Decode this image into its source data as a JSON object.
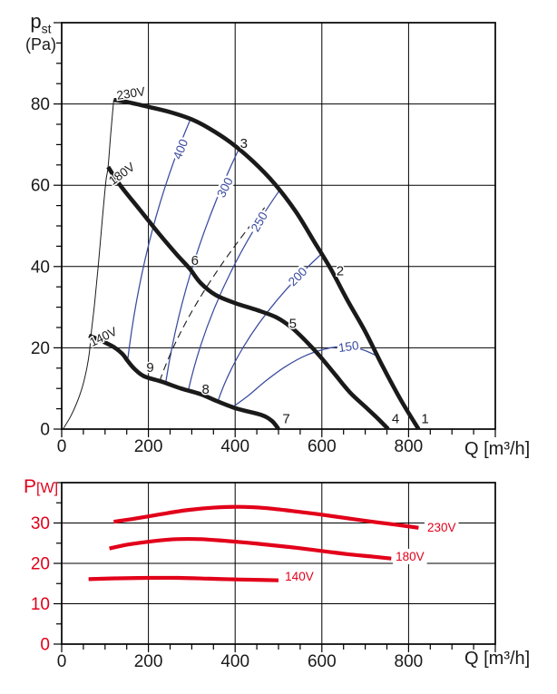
{
  "colors": {
    "black": "#1a1a1a",
    "blue": "#3a4b9f",
    "red": "#e2001a",
    "grid": "#000000"
  },
  "axis_titles": {
    "pressure_main": "p",
    "pressure_sub": "st",
    "pressure_unit": "(Pa)",
    "flow": "Q [m³/h]",
    "power_main": "P",
    "power_unit": "[W]"
  },
  "chart_data": [
    {
      "name": "static-pressure-vs-flow",
      "type": "line",
      "xlabel": "Q [m³/h]",
      "ylabel": "pst (Pa)",
      "xlim": [
        0,
        1000
      ],
      "ylim": [
        0,
        100
      ],
      "x_major": 200,
      "x_minor": 50,
      "y_major": 20,
      "y_minor": 5,
      "x_ticks_labeled": [
        0,
        200,
        400,
        600,
        800
      ],
      "y_ticks_labeled": [
        0,
        20,
        40,
        60,
        80
      ],
      "grid": true,
      "tick_label_color_y": "black",
      "series": [
        {
          "name": "230V",
          "color": "black",
          "width": 4.6,
          "points": [
            [
              120,
              81
            ],
            [
              150,
              80.5
            ],
            [
              200,
              79.3
            ],
            [
              250,
              78
            ],
            [
              300,
              76.2
            ],
            [
              340,
              74
            ],
            [
              390,
              70.5
            ],
            [
              440,
              66
            ],
            [
              490,
              60.5
            ],
            [
              540,
              53.5
            ],
            [
              583,
              46
            ],
            [
              620,
              39.5
            ],
            [
              660,
              31.5
            ],
            [
              700,
              24
            ],
            [
              740,
              15.5
            ],
            [
              783,
              7
            ],
            [
              823,
              0
            ]
          ]
        },
        {
          "name": "180V",
          "color": "black",
          "width": 4.6,
          "points": [
            [
              107,
              64.5
            ],
            [
              135,
              60
            ],
            [
              180,
              54
            ],
            [
              225,
              48
            ],
            [
              265,
              43
            ],
            [
              295,
              39.5
            ],
            [
              320,
              36
            ],
            [
              355,
              33
            ],
            [
              400,
              31
            ],
            [
              450,
              29.3
            ],
            [
              495,
              27.5
            ],
            [
              530,
              25
            ],
            [
              560,
              22
            ],
            [
              595,
              18
            ],
            [
              630,
              13.5
            ],
            [
              665,
              9
            ],
            [
              700,
              5.5
            ],
            [
              730,
              2.5
            ],
            [
              753,
              0
            ]
          ]
        },
        {
          "name": "140V",
          "color": "black",
          "width": 4.6,
          "points": [
            [
              63,
              23
            ],
            [
              90,
              21.8
            ],
            [
              120,
              20.2
            ],
            [
              140,
              18.5
            ],
            [
              152,
              16.8
            ],
            [
              168,
              14.8
            ],
            [
              190,
              13
            ],
            [
              230,
              11.7
            ],
            [
              275,
              10
            ],
            [
              320,
              8.6
            ],
            [
              360,
              6.8
            ],
            [
              405,
              5
            ],
            [
              460,
              3.5
            ],
            [
              485,
              2
            ],
            [
              500,
              0
            ]
          ]
        }
      ],
      "boundary_curve": {
        "name": "operating-range-boundary",
        "color": "black",
        "width": 1,
        "points": [
          [
            3,
            0
          ],
          [
            20,
            3
          ],
          [
            35,
            6.5
          ],
          [
            48,
            10.5
          ],
          [
            58,
            15
          ],
          [
            64,
            19
          ],
          [
            68,
            23.5
          ],
          [
            76,
            31
          ],
          [
            85,
            41
          ],
          [
            94,
            52
          ],
          [
            102,
            61
          ],
          [
            107,
            64.5
          ],
          [
            113,
            72.5
          ],
          [
            120,
            81
          ]
        ]
      },
      "constant_value_lines": [
        {
          "label": "400",
          "p0": [
            152,
            16.8
          ],
          "ctrl": [
            188,
            49
          ],
          "p2": [
            296,
            76
          ],
          "label_at": [
            283,
            69.5
          ],
          "rot": -68
        },
        {
          "label": "300",
          "p0": [
            240,
            11.5
          ],
          "ctrl": [
            283,
            41
          ],
          "p2": [
            409,
            69
          ],
          "label_at": [
            385,
            60
          ],
          "rot": -63
        },
        {
          "label": "250",
          "p0": [
            292,
            9.5
          ],
          "ctrl": [
            346,
            35
          ],
          "p2": [
            504,
            59
          ],
          "label_at": [
            464,
            51.5
          ],
          "rot": -60
        },
        {
          "label": "200",
          "p0": [
            360,
            6.8
          ],
          "ctrl": [
            420,
            25.5
          ],
          "p2": [
            598,
            43
          ],
          "label_at": [
            551,
            37.8
          ],
          "rot": -45
        },
        {
          "label": "150",
          "points": [
            [
              394,
              5.4
            ],
            [
              430,
              8.2
            ],
            [
              470,
              11.8
            ],
            [
              515,
              15.3
            ],
            [
              565,
              18.2
            ],
            [
              620,
              20
            ],
            [
              660,
              20.3
            ],
            [
              695,
              19.5
            ],
            [
              727,
              18
            ]
          ],
          "label_at": [
            663,
            20.3
          ],
          "rot": -8
        }
      ],
      "dashed_example_line": {
        "p0": [
          226,
          11.8
        ],
        "ctrl": [
          288,
          31
        ],
        "p2": [
          468,
          54.5
        ]
      },
      "point_labels": [
        {
          "text": "1",
          "at": [
            838,
            2.6
          ]
        },
        {
          "text": "2",
          "at": [
            642,
            39
          ]
        },
        {
          "text": "3",
          "at": [
            420,
            70.3
          ]
        },
        {
          "text": "4",
          "at": [
            770,
            2.6
          ]
        },
        {
          "text": "5",
          "at": [
            533,
            26
          ]
        },
        {
          "text": "6",
          "at": [
            307,
            41.5
          ]
        },
        {
          "text": "7",
          "at": [
            518,
            2.6
          ]
        },
        {
          "text": "8",
          "at": [
            332,
            9.8
          ]
        },
        {
          "text": "9",
          "at": [
            204,
            15.2
          ]
        }
      ],
      "curve_labels": [
        {
          "text": "230V",
          "at": [
            161,
            82.6
          ],
          "rot": -9,
          "color": "black"
        },
        {
          "text": "180V",
          "at": [
            144,
            63
          ],
          "rot": -36,
          "color": "black"
        },
        {
          "text": "140V",
          "at": [
            100,
            22.8
          ],
          "rot": -26,
          "color": "black"
        }
      ]
    },
    {
      "name": "power-vs-flow",
      "type": "line",
      "xlabel": "Q [m³/h]",
      "ylabel": "P[W]",
      "xlim": [
        0,
        1000
      ],
      "ylim": [
        0,
        40
      ],
      "x_major": 200,
      "x_minor": 50,
      "y_major": 10,
      "y_minor": 5,
      "x_ticks_labeled": [
        0,
        200,
        400,
        600,
        800
      ],
      "y_ticks_labeled": [
        0,
        10,
        20,
        30
      ],
      "grid": true,
      "tick_label_color_y": "red",
      "series": [
        {
          "name": "230V",
          "color": "red",
          "width": 4.2,
          "points": [
            [
              120,
              30.3
            ],
            [
              170,
              31.1
            ],
            [
              230,
              32.2
            ],
            [
              290,
              33.2
            ],
            [
              350,
              33.8
            ],
            [
              410,
              34
            ],
            [
              470,
              33.7
            ],
            [
              530,
              33
            ],
            [
              590,
              32.2
            ],
            [
              650,
              31.3
            ],
            [
              710,
              30.4
            ],
            [
              770,
              29.6
            ],
            [
              823,
              28.8
            ]
          ],
          "label_at": [
            876,
            27.9
          ]
        },
        {
          "name": "180V",
          "color": "red",
          "width": 4.2,
          "points": [
            [
              110,
              23.7
            ],
            [
              155,
              24.7
            ],
            [
              210,
              25.5
            ],
            [
              265,
              26
            ],
            [
              320,
              26
            ],
            [
              375,
              25.6
            ],
            [
              430,
              25.1
            ],
            [
              485,
              24.5
            ],
            [
              545,
              23.8
            ],
            [
              605,
              23
            ],
            [
              665,
              22.2
            ],
            [
              715,
              21.7
            ],
            [
              760,
              21.2
            ]
          ],
          "label_at": [
            803,
            20.7
          ]
        },
        {
          "name": "140V",
          "color": "red",
          "width": 4.2,
          "points": [
            [
              62,
              16.1
            ],
            [
              130,
              16.3
            ],
            [
              200,
              16.4
            ],
            [
              270,
              16.4
            ],
            [
              340,
              16.2
            ],
            [
              410,
              16
            ],
            [
              460,
              15.9
            ],
            [
              500,
              15.8
            ]
          ],
          "label_at": [
            548,
            15.7
          ]
        }
      ],
      "curve_labels": []
    }
  ]
}
